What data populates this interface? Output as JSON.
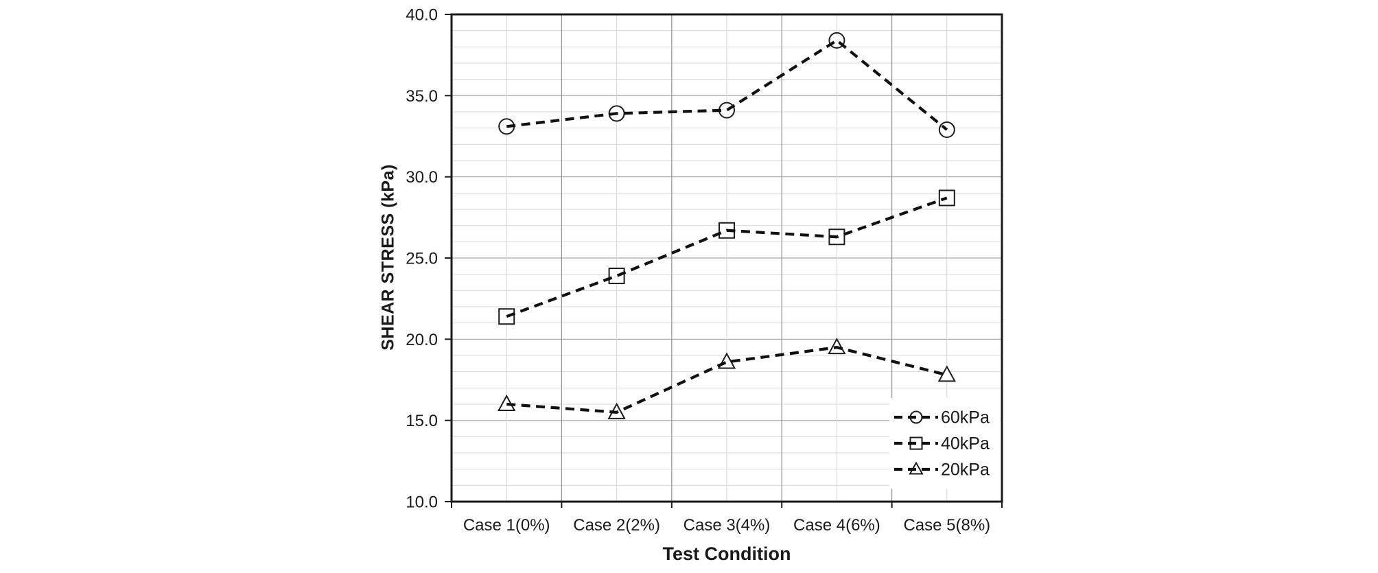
{
  "figure": {
    "background": "#ffffff"
  },
  "chart_data": {
    "type": "line",
    "title": "",
    "xlabel": "Test Condition",
    "ylabel": "SHEAR STRESS (kPa)",
    "categories": [
      "Case 1(0%)",
      "Case 2(2%)",
      "Case 3(4%)",
      "Case 4(6%)",
      "Case 5(8%)"
    ],
    "series": [
      {
        "name": "60kPa",
        "marker": "circle",
        "values": [
          33.1,
          33.9,
          34.1,
          38.4,
          32.9
        ]
      },
      {
        "name": "40kPa",
        "marker": "square",
        "values": [
          21.4,
          23.9,
          26.7,
          26.3,
          28.7
        ]
      },
      {
        "name": "20kPa",
        "marker": "triangle",
        "values": [
          16.0,
          15.5,
          18.6,
          19.5,
          17.8
        ]
      }
    ],
    "ylim": [
      10,
      40
    ],
    "yticks": [
      10,
      15,
      20,
      25,
      30,
      35,
      40
    ],
    "ytick_labels": [
      "10.0",
      "15.0",
      "20.0",
      "25.0",
      "30.0",
      "35.0",
      "40.0"
    ],
    "minor_y_step": 1.0,
    "grid": true,
    "line_style": "dashed",
    "legend_position": "lower-right",
    "legend_entries": [
      "60kPa",
      "40kPa",
      "20kPa"
    ],
    "colors": {
      "line": "#111111",
      "marker_fill": "#ffffff",
      "marker_stroke": "#1c1c1c",
      "grid_minor": "#d9d9d9",
      "grid_major": "#a6a6a6",
      "grid_v_center": "#d6d6d6",
      "grid_v_boundary": "#8f8f8f",
      "frame": "#1a1a1a",
      "text": "#1a1a1a",
      "legend_bg": "#ffffff"
    }
  }
}
